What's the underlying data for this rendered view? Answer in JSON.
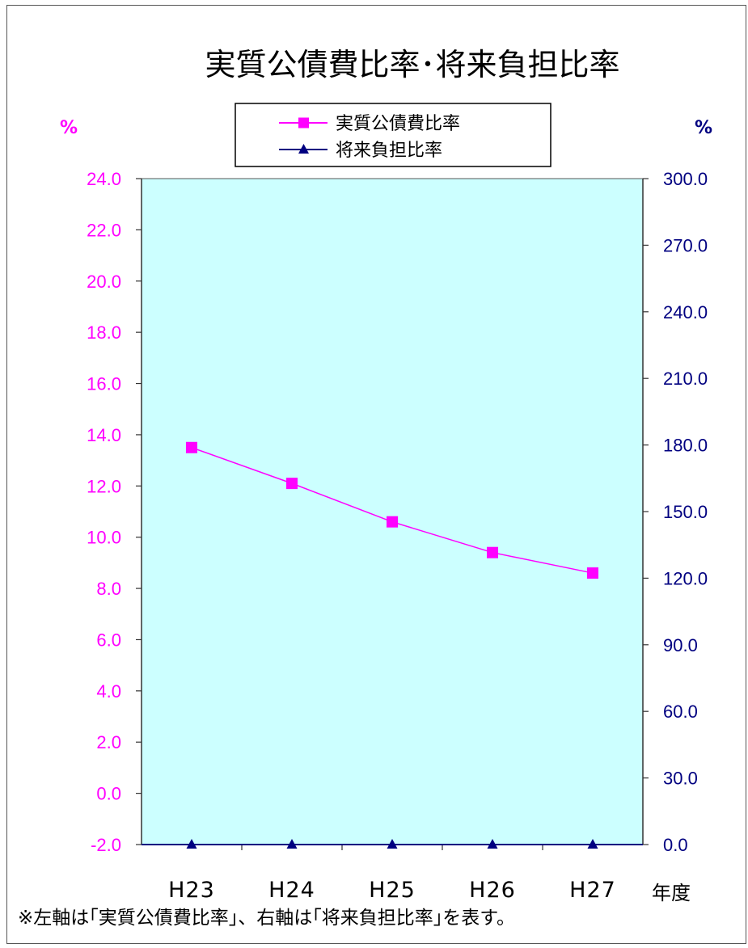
{
  "colors": {
    "left_axis": "#ff00ff",
    "right_axis": "#000080",
    "plot_bg": "#ccffff",
    "series_1": "#ff00ff",
    "series_2": "#000080"
  },
  "chart_data": {
    "type": "line",
    "title": "実質公債費比率･将来負担比率",
    "categories": [
      "H23",
      "H24",
      "H25",
      "H26",
      "H27"
    ],
    "xunit": "年度",
    "left_axis": {
      "unit": "%",
      "ylim": [
        -2.0,
        24.0
      ],
      "step": 2.0,
      "decimals": 1
    },
    "right_axis": {
      "unit": "%",
      "ylim": [
        0.0,
        300.0
      ],
      "step": 30.0,
      "decimals": 1
    },
    "series": [
      {
        "name": "実質公債費比率",
        "axis": "left",
        "marker": "square",
        "values": [
          13.5,
          12.1,
          10.6,
          9.4,
          8.6
        ]
      },
      {
        "name": "将来負担比率",
        "axis": "right",
        "marker": "triangle",
        "values": [
          0.0,
          0.0,
          0.0,
          0.0,
          0.0
        ]
      }
    ],
    "legend_position": "top-center",
    "grid": false
  },
  "footnote": "※左軸は｢実質公債費比率｣、右軸は｢将来負担比率｣を表す。"
}
